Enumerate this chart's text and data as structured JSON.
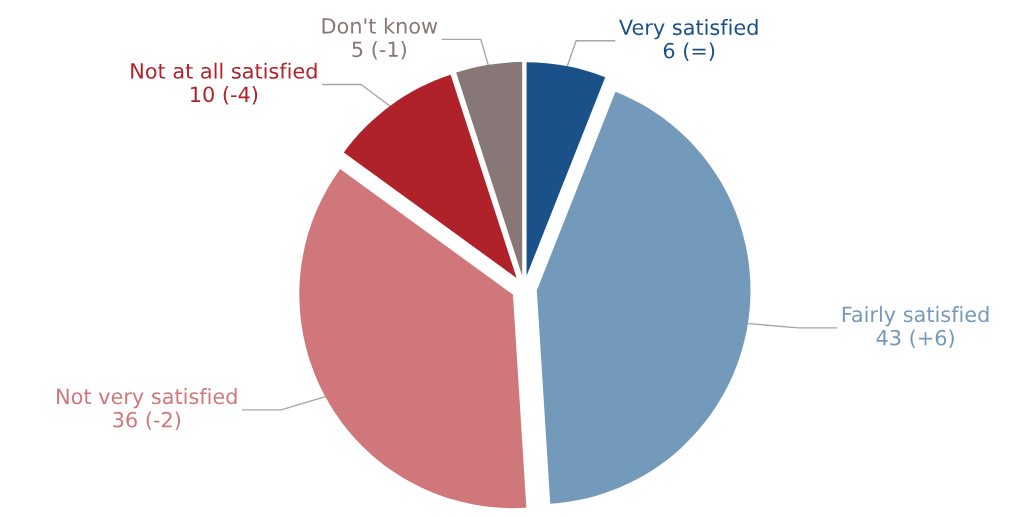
{
  "chart_data": {
    "type": "pie",
    "categories": [
      "Very satisfied",
      "Fairly satisfied",
      "Not very satisfied",
      "Not at all satisfied",
      "Don't know"
    ],
    "values": [
      6,
      43,
      36,
      10,
      5
    ],
    "value_labels": [
      "6 (=)",
      "43 (+6)",
      "36 (-2)",
      "10 (-4)",
      "5 (-1)"
    ],
    "colors": [
      "#1a5189",
      "#7399bb",
      "#cf777b",
      "#b02229",
      "#877776"
    ],
    "legend": false
  }
}
